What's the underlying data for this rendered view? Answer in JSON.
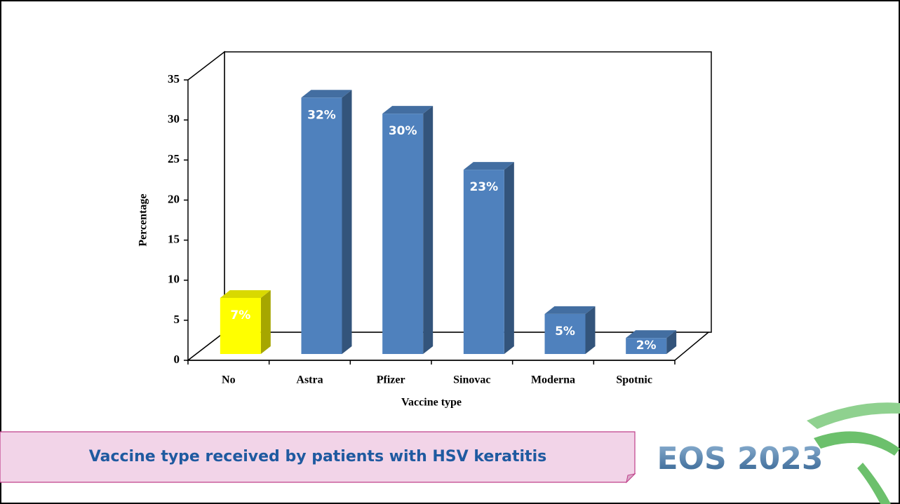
{
  "chart_data": {
    "type": "bar3d",
    "ylabel": "Percentage",
    "xlabel": "Vaccine type",
    "categories": [
      "No",
      "Astra",
      "Pfizer",
      "Sinovac",
      "Moderna",
      "Spotnic"
    ],
    "values": [
      7,
      32,
      30,
      23,
      5,
      2
    ],
    "value_labels": [
      "7%",
      "32%",
      "30%",
      "23%",
      "5%",
      "2%"
    ],
    "colors": [
      "#ffff00",
      "#4f81bd",
      "#4f81bd",
      "#4f81bd",
      "#4f81bd",
      "#4f81bd"
    ],
    "ylim": [
      0,
      35
    ],
    "yticks": [
      0,
      5,
      10,
      15,
      20,
      25,
      30,
      35
    ]
  },
  "caption": "Vaccine type received by patients with HSV keratitis",
  "logo": "EOS 2023"
}
